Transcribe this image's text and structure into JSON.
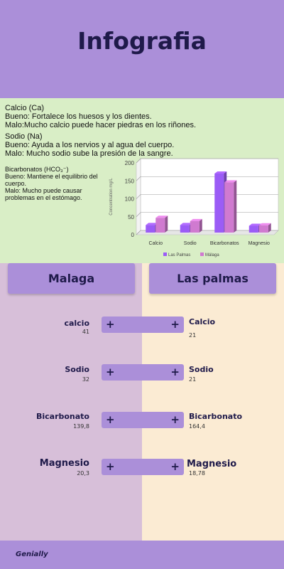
{
  "title": "Infografia",
  "info": {
    "calcio": {
      "heading": "Calcio (Ca)",
      "bueno": "Bueno: Fortalece los huesos y los dientes.",
      "malo": "Malo:Mucho calcio puede hacer piedras en los riñones."
    },
    "sodio": {
      "heading": "Sodio (Na)",
      "bueno": "Bueno: Ayuda a los nervios y al agua del cuerpo.",
      "malo": "Malo: Mucho sodio sube la presión de la sangre."
    },
    "bicarbonatos": {
      "heading": "Bicarbonatos (HCO₃⁻)",
      "bueno_1": "Bueno: Mantiene el equilibrio del",
      "bueno_2": "cuerpo.",
      "malo_1": "Malo: Mucho puede causar",
      "malo_2": "problemas en el estómago."
    }
  },
  "chart_data": {
    "type": "bar",
    "categories": [
      "Calcio",
      "Sodio",
      "Bicarbonatos",
      "Magnesio"
    ],
    "series": [
      {
        "name": "Las Palmas",
        "values": [
          21,
          21,
          164.4,
          18.78
        ],
        "color": "#9b5cf6"
      },
      {
        "name": "Málaga",
        "values": [
          41,
          32,
          139.8,
          20.3
        ],
        "color": "#d07ad0"
      }
    ],
    "ylabel": "Concentration mg/L",
    "ylim": [
      0,
      200
    ],
    "yticks": [
      "0",
      "50",
      "100",
      "150",
      "200"
    ],
    "legend": "bottom",
    "grid": true
  },
  "cities": {
    "left": "Malaga",
    "right": "Las palmas"
  },
  "minerals": [
    {
      "left_label": "calcio",
      "left_value": "41",
      "right_label": "Calcio",
      "right_value": "21"
    },
    {
      "left_label": "Sodio",
      "left_value": "32",
      "right_label": "Sodio",
      "right_value": "21"
    },
    {
      "left_label": "Bicarbonato",
      "left_value": "139,8",
      "right_label": "Bicarbonato",
      "right_value": "164,4"
    },
    {
      "left_label": "Magnesio",
      "left_value": "20,3",
      "right_label": "Magnesio",
      "right_value": "18,78"
    }
  ],
  "slider_icon": "plus-icon",
  "footer": "Genially",
  "colors": {
    "header": "#ab8fd9",
    "info_bg": "#d9eec6",
    "left_bg": "#d7bfd9",
    "right_bg": "#fbebd3",
    "text_dark": "#1f1a4a"
  }
}
